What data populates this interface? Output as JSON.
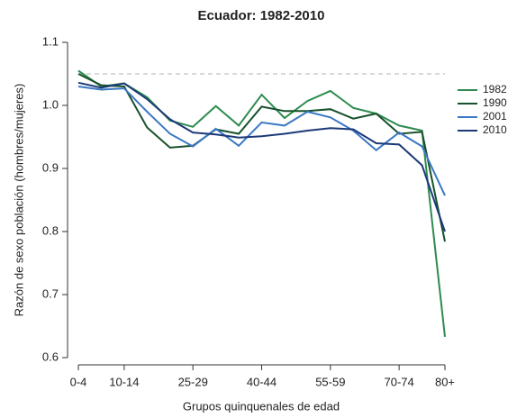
{
  "chart_data": {
    "type": "line",
    "title": "Ecuador: 1982-2010",
    "x_label": "Grupos quinquenales de edad",
    "y_label": "Razón de sexo población (hombres/mujeres)",
    "categories": [
      "0-4",
      null,
      "10-14",
      null,
      null,
      "25-29",
      null,
      null,
      "40-44",
      null,
      null,
      "55-59",
      null,
      null,
      "70-74",
      null,
      "80+"
    ],
    "ylim": [
      0.6,
      1.1
    ],
    "yticks": [
      0.6,
      0.7,
      0.8,
      0.9,
      {
        "value": 1,
        "label": "1.0"
      },
      1.1
    ],
    "reference_line": 1.05,
    "reference_color": "#cccccc",
    "legend": "right",
    "series": [
      {
        "name": "1982",
        "color": "#2e8b4f",
        "values": [
          1.055,
          1.03,
          1.035,
          1.013,
          0.976,
          0.966,
          0.999,
          0.968,
          1.017,
          0.98,
          1.007,
          1.023,
          0.996,
          0.987,
          0.968,
          0.96,
          0.633
        ]
      },
      {
        "name": "1990",
        "color": "#17512b",
        "values": [
          1.05,
          1.032,
          1.03,
          0.965,
          0.933,
          0.936,
          0.962,
          0.955,
          0.998,
          0.991,
          0.991,
          0.994,
          0.979,
          0.987,
          0.955,
          0.958,
          0.784
        ]
      },
      {
        "name": "2001",
        "color": "#3b78c4",
        "values": [
          1.03,
          1.025,
          1.027,
          0.99,
          0.955,
          0.935,
          0.963,
          0.936,
          0.973,
          0.968,
          0.99,
          0.981,
          0.96,
          0.929,
          0.957,
          0.935,
          0.857
        ]
      },
      {
        "name": "2010",
        "color": "#1c3a78",
        "values": [
          1.036,
          1.028,
          1.035,
          1.01,
          0.978,
          0.957,
          0.954,
          0.949,
          0.951,
          0.955,
          0.96,
          0.964,
          0.962,
          0.94,
          0.938,
          0.905,
          0.8
        ]
      }
    ]
  }
}
